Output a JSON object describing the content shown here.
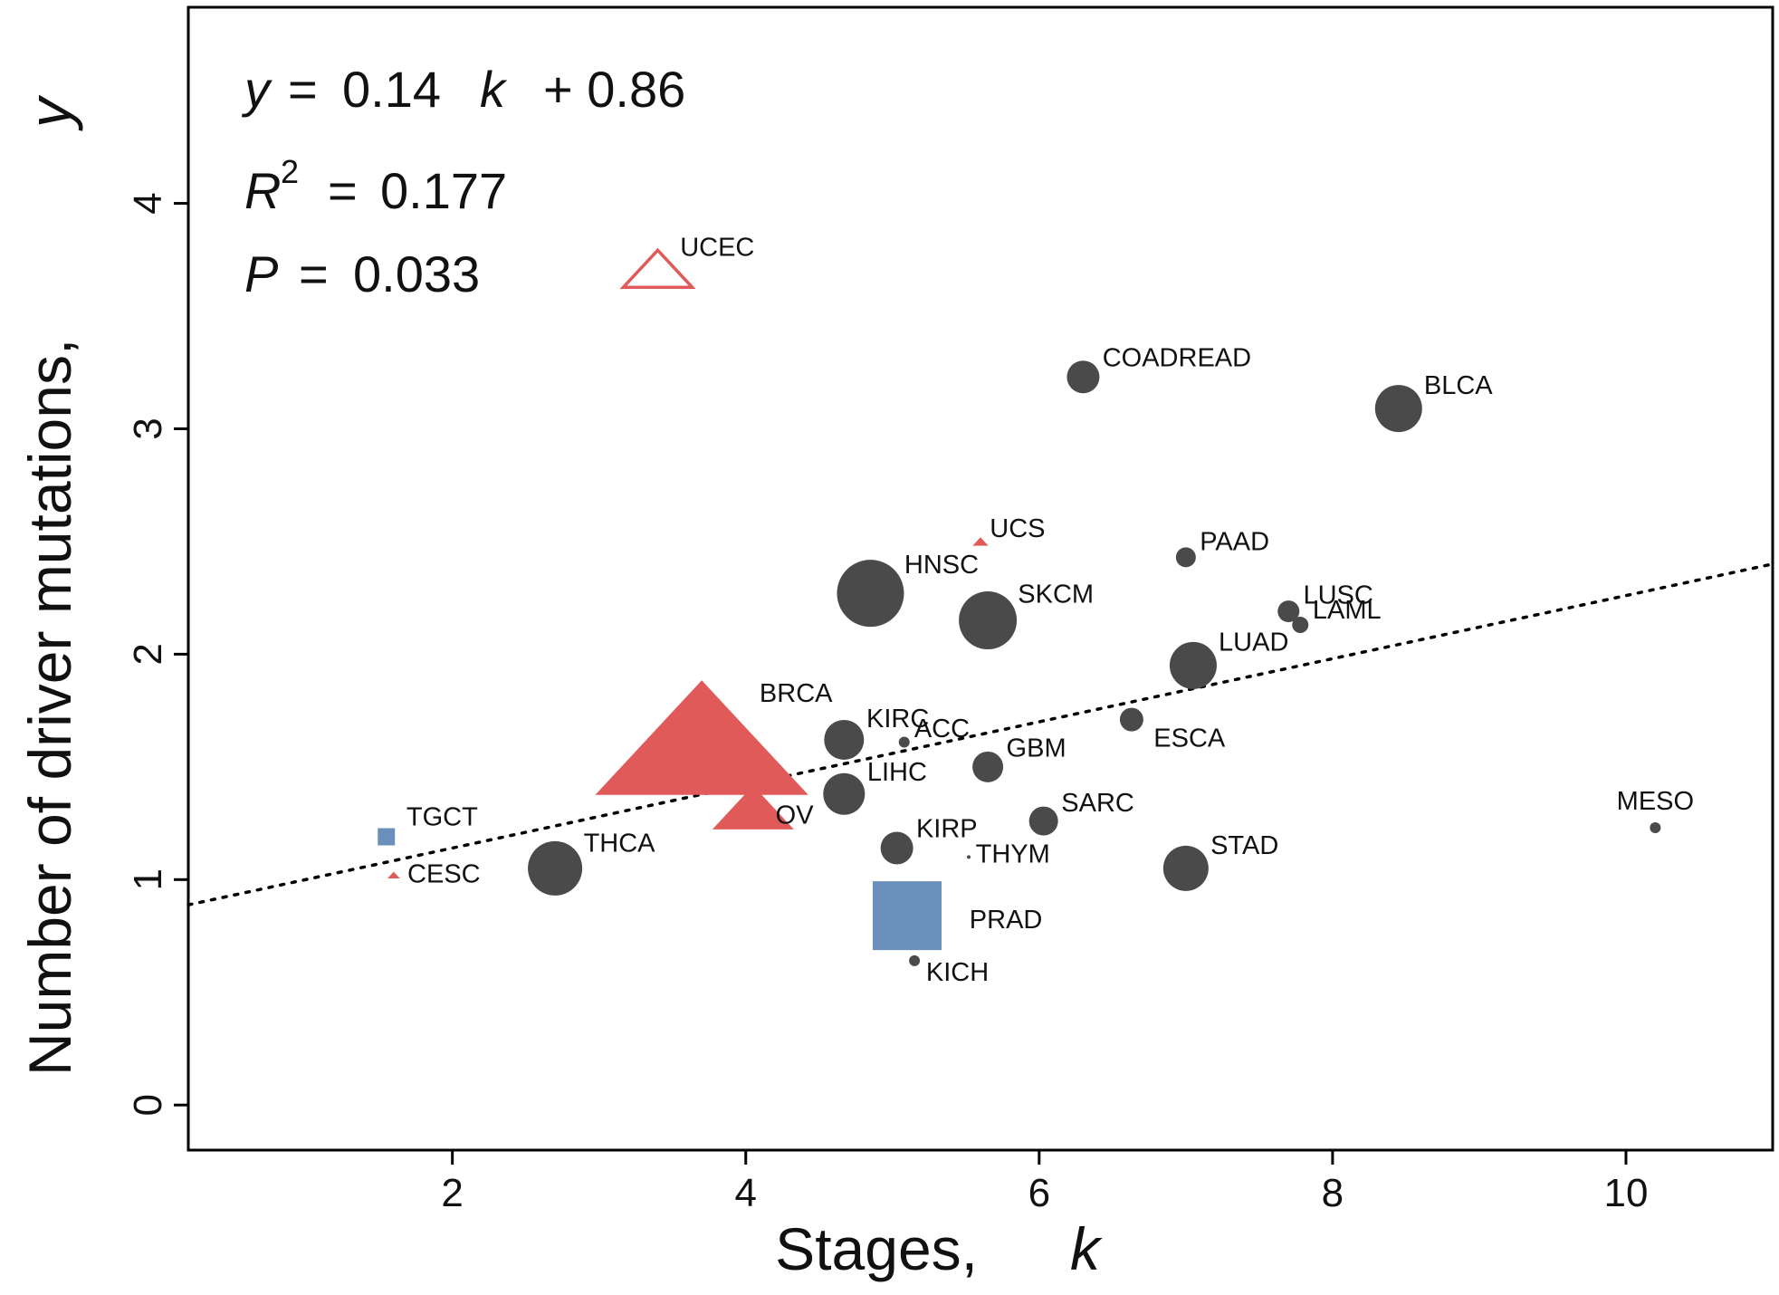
{
  "chart_data": {
    "type": "scatter",
    "xlabel": "Stages,",
    "xlabel_var": "k",
    "ylabel": "Number of driver mutations,",
    "ylabel_var": "y",
    "xlim": [
      0.2,
      11.0
    ],
    "ylim": [
      -0.2,
      4.87
    ],
    "x_ticks": [
      2,
      4,
      6,
      8,
      10
    ],
    "y_ticks": [
      0,
      1,
      2,
      3,
      4
    ],
    "grid": false,
    "colors": {
      "circle": "#4a4a4a",
      "triangle": "#e05a5a",
      "square": "#6a8fba",
      "fit_line": "#000000"
    },
    "annotations": {
      "equation": {
        "var": "y",
        "eq": "=",
        "expr": "0.14",
        "var2": "k",
        "rest": "+ 0.86"
      },
      "r2": {
        "var": "R",
        "sup": "2",
        "eq": "=",
        "value": "0.177"
      },
      "p": {
        "var": "P",
        "eq": "=",
        "value": "0.033"
      }
    },
    "fit_line": {
      "slope": 0.14,
      "intercept": 0.86,
      "style": "dotted"
    },
    "points": [
      {
        "label": "UCEC",
        "x": 3.4,
        "y": 3.71,
        "shape": "triangle-open",
        "size": 22
      },
      {
        "label": "COADREAD",
        "x": 6.3,
        "y": 3.23,
        "shape": "circle",
        "size": 18
      },
      {
        "label": "BLCA",
        "x": 8.45,
        "y": 3.09,
        "shape": "circle",
        "size": 26
      },
      {
        "label": "UCS",
        "x": 5.6,
        "y": 2.5,
        "shape": "triangle",
        "size": 5
      },
      {
        "label": "PAAD",
        "x": 7.0,
        "y": 2.43,
        "shape": "circle",
        "size": 11
      },
      {
        "label": "HNSC",
        "x": 4.85,
        "y": 2.27,
        "shape": "circle",
        "size": 37
      },
      {
        "label": "SKCM",
        "x": 5.65,
        "y": 2.15,
        "shape": "circle",
        "size": 32
      },
      {
        "label": "LUSC",
        "x": 7.7,
        "y": 2.19,
        "shape": "circle",
        "size": 12
      },
      {
        "label": "LAML",
        "x": 7.78,
        "y": 2.13,
        "shape": "circle",
        "size": 9
      },
      {
        "label": "LUAD",
        "x": 7.05,
        "y": 1.95,
        "shape": "circle",
        "size": 26
      },
      {
        "label": "BRCA",
        "x": 3.7,
        "y": 1.63,
        "shape": "triangle",
        "size": 68
      },
      {
        "label": "KIRC",
        "x": 4.67,
        "y": 1.62,
        "shape": "circle",
        "size": 22
      },
      {
        "label": "ACC",
        "x": 5.08,
        "y": 1.61,
        "shape": "circle",
        "size": 6
      },
      {
        "label": "ESCA",
        "x": 6.63,
        "y": 1.71,
        "shape": "circle",
        "size": 13
      },
      {
        "label": "GBM",
        "x": 5.65,
        "y": 1.5,
        "shape": "circle",
        "size": 17
      },
      {
        "label": "LIHC",
        "x": 4.67,
        "y": 1.38,
        "shape": "circle",
        "size": 23
      },
      {
        "label": "OV",
        "x": 4.05,
        "y": 1.32,
        "shape": "triangle",
        "size": 26
      },
      {
        "label": "SARC",
        "x": 6.03,
        "y": 1.26,
        "shape": "circle",
        "size": 16
      },
      {
        "label": "TGCT",
        "x": 1.55,
        "y": 1.19,
        "shape": "square",
        "size": 19
      },
      {
        "label": "KIRP",
        "x": 5.03,
        "y": 1.14,
        "shape": "circle",
        "size": 18
      },
      {
        "label": "THYM",
        "x": 5.52,
        "y": 1.1,
        "shape": "circle",
        "size": 2
      },
      {
        "label": "STAD",
        "x": 7.0,
        "y": 1.05,
        "shape": "circle",
        "size": 25
      },
      {
        "label": "THCA",
        "x": 2.7,
        "y": 1.05,
        "shape": "circle",
        "size": 30
      },
      {
        "label": "CESC",
        "x": 1.6,
        "y": 1.02,
        "shape": "triangle",
        "size": 4
      },
      {
        "label": "PRAD",
        "x": 5.1,
        "y": 0.84,
        "shape": "square",
        "size": 76
      },
      {
        "label": "KICH",
        "x": 5.15,
        "y": 0.64,
        "shape": "circle",
        "size": 6
      },
      {
        "label": "MESO",
        "x": 10.2,
        "y": 1.23,
        "shape": "circle",
        "size": 6
      }
    ]
  }
}
